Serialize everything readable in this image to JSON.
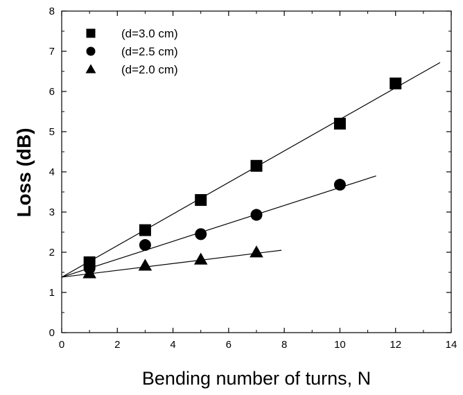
{
  "chart_data": {
    "type": "scatter",
    "title": "",
    "xlabel": "Bending number of turns, N",
    "ylabel": "Loss (dB)",
    "xlim": [
      0,
      14
    ],
    "ylim": [
      0,
      8
    ],
    "xticks": [
      0,
      2,
      4,
      6,
      8,
      10,
      12,
      14
    ],
    "yticks": [
      0,
      1,
      2,
      3,
      4,
      5,
      6,
      7,
      8
    ],
    "grid": false,
    "legend_position": "top-left",
    "series": [
      {
        "name": "(d=3.0 cm)",
        "marker": "square",
        "x": [
          1,
          3,
          5,
          7,
          10,
          12
        ],
        "y": [
          1.75,
          2.55,
          3.3,
          4.15,
          5.2,
          6.2
        ],
        "fit_line": {
          "x": [
            0,
            13.6
          ],
          "y": [
            1.38,
            6.72
          ]
        }
      },
      {
        "name": "(d=2.5 cm)",
        "marker": "circle",
        "x": [
          1,
          3,
          5,
          7,
          10
        ],
        "y": [
          1.6,
          2.18,
          2.45,
          2.93,
          3.68
        ],
        "fit_line": {
          "x": [
            0,
            11.3
          ],
          "y": [
            1.38,
            3.9
          ]
        }
      },
      {
        "name": "(d=2.0 cm)",
        "marker": "triangle",
        "x": [
          1,
          3,
          5,
          7
        ],
        "y": [
          1.48,
          1.67,
          1.82,
          2.0
        ],
        "fit_line": {
          "x": [
            0,
            7.9
          ],
          "y": [
            1.38,
            2.05
          ]
        }
      }
    ]
  }
}
